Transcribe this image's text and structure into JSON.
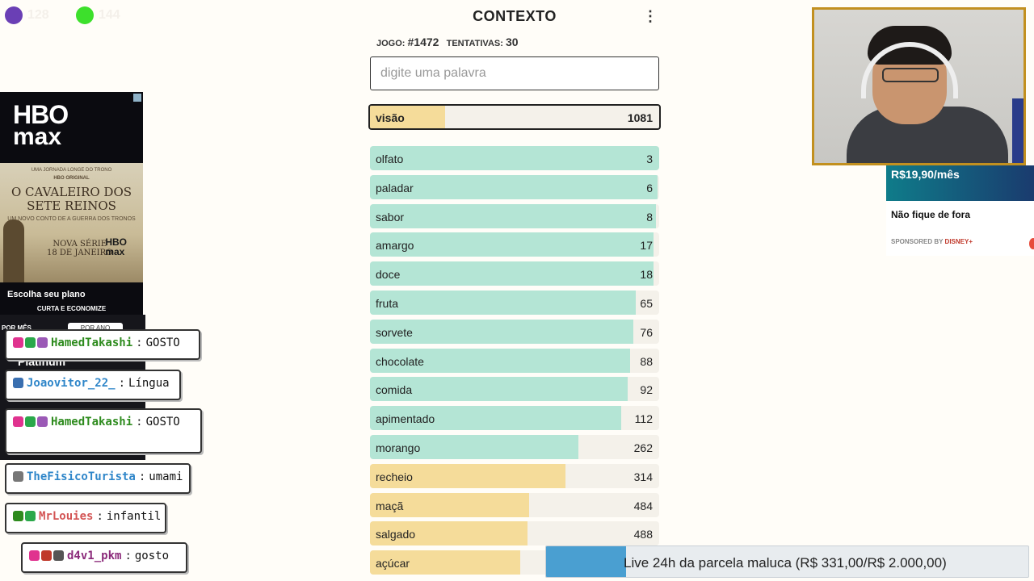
{
  "overlay": {
    "counter_left": {
      "value": "128",
      "color": "#6a3fb5"
    },
    "counter_right": {
      "value": "144",
      "color": "#3de02c"
    }
  },
  "game": {
    "title": "CONTEXTO",
    "menu_icon": "kebab-icon",
    "game_label": "JOGO:",
    "game_number": "#1472",
    "attempts_label": "TENTATIVAS:",
    "attempts": "30",
    "input_placeholder": "digite uma palavra",
    "current_guess": {
      "word": "visão",
      "rank": "1081",
      "fill": 0.26
    },
    "guesses": [
      {
        "word": "olfato",
        "rank": "3",
        "fill": 1.0,
        "color": "green"
      },
      {
        "word": "paladar",
        "rank": "6",
        "fill": 0.995,
        "color": "green"
      },
      {
        "word": "sabor",
        "rank": "8",
        "fill": 0.99,
        "color": "green"
      },
      {
        "word": "amargo",
        "rank": "17",
        "fill": 0.98,
        "color": "green"
      },
      {
        "word": "doce",
        "rank": "18",
        "fill": 0.98,
        "color": "green"
      },
      {
        "word": "fruta",
        "rank": "65",
        "fill": 0.92,
        "color": "green"
      },
      {
        "word": "sorvete",
        "rank": "76",
        "fill": 0.91,
        "color": "green"
      },
      {
        "word": "chocolate",
        "rank": "88",
        "fill": 0.9,
        "color": "green"
      },
      {
        "word": "comida",
        "rank": "92",
        "fill": 0.89,
        "color": "green"
      },
      {
        "word": "apimentado",
        "rank": "112",
        "fill": 0.87,
        "color": "green"
      },
      {
        "word": "morango",
        "rank": "262",
        "fill": 0.72,
        "color": "green"
      },
      {
        "word": "recheio",
        "rank": "314",
        "fill": 0.675,
        "color": "yellow"
      },
      {
        "word": "maçã",
        "rank": "484",
        "fill": 0.55,
        "color": "yellow"
      },
      {
        "word": "salgado",
        "rank": "488",
        "fill": 0.545,
        "color": "yellow"
      },
      {
        "word": "açúcar",
        "rank": "",
        "fill": 0.52,
        "color": "yellow"
      }
    ]
  },
  "ad_left": {
    "logo_line1": "HBO",
    "logo_line2": "max",
    "tagline": "UMA JORNADA LONGE DO TRONO",
    "hbo_original": "HBO ORIGINAL",
    "show_title": "O CAVALEIRO DOS SETE REINOS",
    "subtitle": "UM NOVO CONTO DE A GUERRA DOS TRONOS",
    "release_line1": "NOVA SÉRIE",
    "release_line2": "18 DE JANEIRO",
    "mini_logo_1": "HBO",
    "mini_logo_2": "max",
    "cta": "Escolha seu plano",
    "cta2": "CURTA E ECONOMIZE"
  },
  "behind_panel": {
    "text1": "POR MÊS",
    "text2": "POR ANO",
    "text3": "Platinum"
  },
  "ad_right": {
    "price": "R$19,90/mês",
    "headline": "Não fique de fora",
    "sponsor_label": "SPONSORED BY",
    "sponsor_brand": "DISNEY+"
  },
  "chat": [
    {
      "user": "HamedTakashi",
      "message": "GOSTO",
      "user_color": "#2e8b1e",
      "badges": [
        "#e0338f",
        "#2aa84a",
        "#9b59b6"
      ]
    },
    {
      "user": "Joaovitor_22_",
      "message": "Língua",
      "user_color": "#2f86c9",
      "badges": [
        "#3a6fb0"
      ]
    },
    {
      "user": "HamedTakashi",
      "message": "GOSTO",
      "user_color": "#2e8b1e",
      "badges": [
        "#e0338f",
        "#2aa84a",
        "#9b59b6"
      ]
    },
    {
      "user": "TheFisicoTurista",
      "message": "umami",
      "user_color": "#2f86c9",
      "badges": [
        "#777777"
      ]
    },
    {
      "user": "MrLouies",
      "message": "infantil",
      "user_color": "#d35454",
      "badges": [
        "#2e8b1e",
        "#2aa84a"
      ]
    },
    {
      "user": "d4v1_pkm",
      "message": "gosto",
      "user_color": "#8b2a7a",
      "badges": [
        "#e0338f",
        "#c0392b",
        "#555555"
      ]
    }
  ],
  "goal_bar": {
    "text": "Live 24h da parcela maluca (R$ 331,00/R$ 2.000,00)",
    "progress": 0.1655
  }
}
